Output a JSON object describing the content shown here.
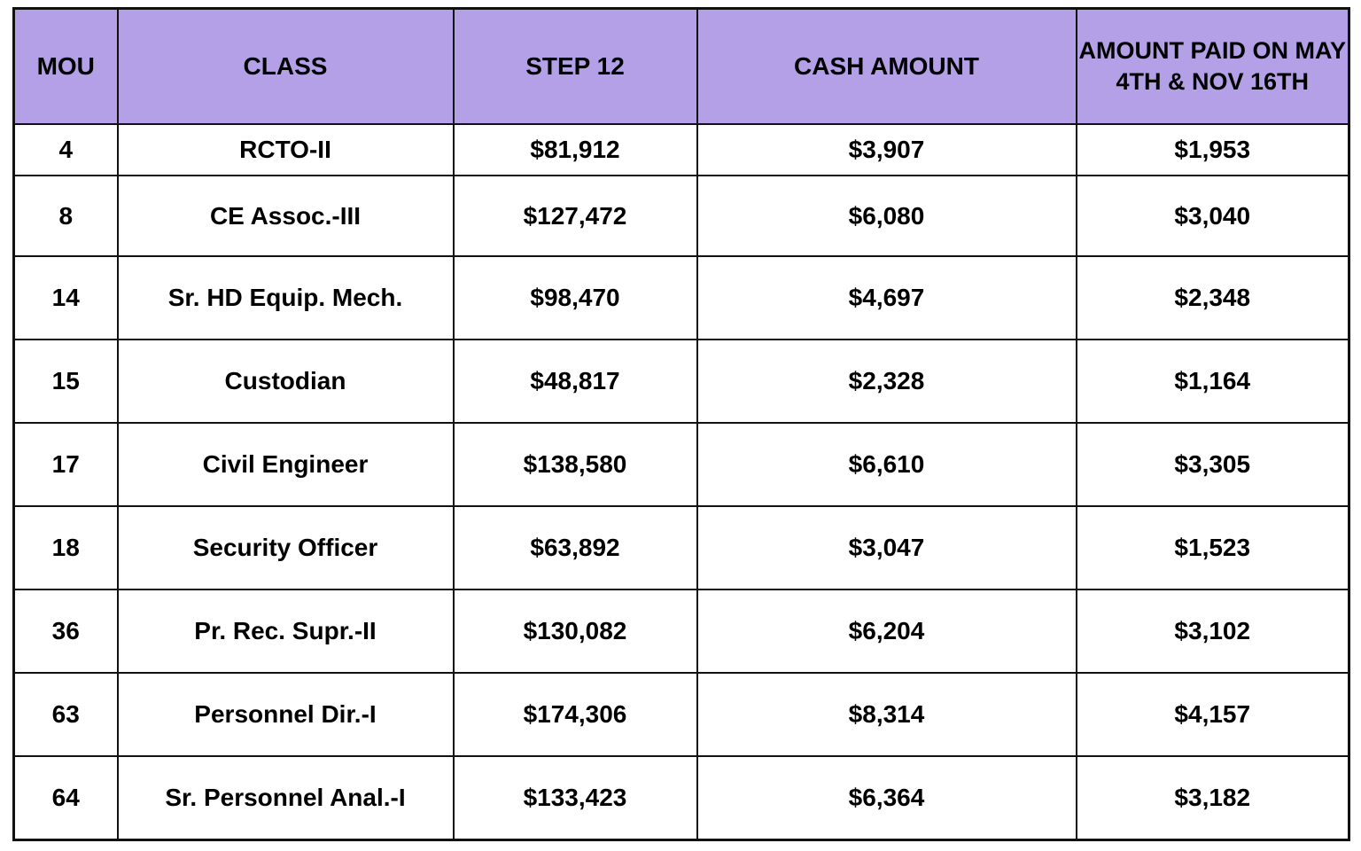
{
  "table": {
    "columns": [
      "MOU",
      "CLASS",
      "STEP 12",
      "CASH AMOUNT",
      "AMOUNT PAID ON MAY 4TH & NOV 16TH"
    ],
    "rows": [
      [
        "4",
        "RCTO-II",
        "$81,912",
        "$3,907",
        "$1,953"
      ],
      [
        "8",
        "CE Assoc.-III",
        "$127,472",
        "$6,080",
        "$3,040"
      ],
      [
        "14",
        "Sr. HD Equip. Mech.",
        "$98,470",
        "$4,697",
        "$2,348"
      ],
      [
        "15",
        "Custodian",
        "$48,817",
        "$2,328",
        "$1,164"
      ],
      [
        "17",
        "Civil Engineer",
        "$138,580",
        "$6,610",
        "$3,305"
      ],
      [
        "18",
        "Security Officer",
        "$63,892",
        "$3,047",
        "$1,523"
      ],
      [
        "36",
        "Pr. Rec. Supr.-II",
        "$130,082",
        "$6,204",
        "$3,102"
      ],
      [
        "63",
        "Personnel Dir.-I",
        "$174,306",
        "$8,314",
        "$4,157"
      ],
      [
        "64",
        "Sr. Personnel Anal.-I",
        "$133,423",
        "$6,364",
        "$3,182"
      ]
    ],
    "colors": {
      "header_bg": "#B3A0E6",
      "border": "#111111",
      "text": "#000000",
      "row_bg": "#ffffff"
    }
  }
}
